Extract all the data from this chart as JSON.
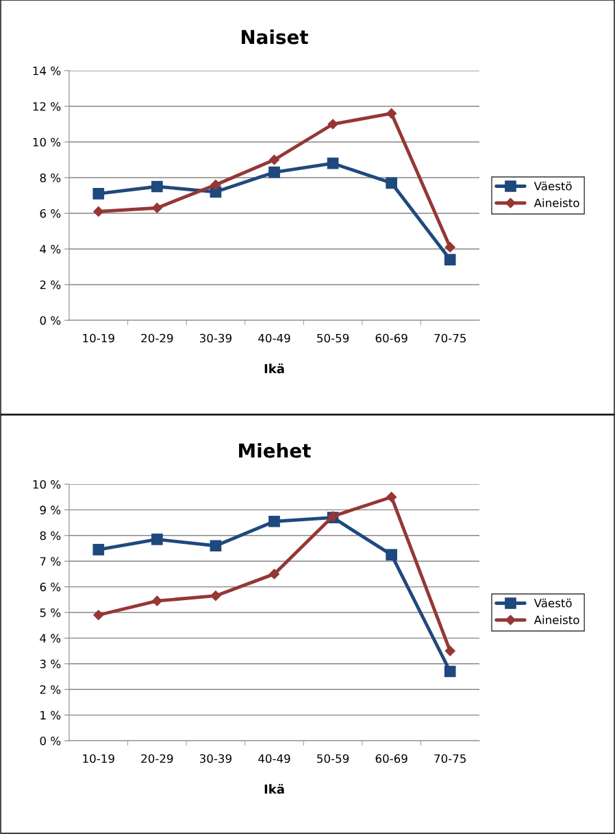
{
  "chart_data": [
    {
      "type": "line",
      "title": "Naiset",
      "xlabel": "Ikä",
      "categories": [
        "10-19",
        "20-29",
        "30-39",
        "40-49",
        "50-59",
        "60-69",
        "70-75"
      ],
      "series": [
        {
          "name": "Väestö",
          "color": "#1f497d",
          "marker": "square",
          "values": [
            7.1,
            7.5,
            7.2,
            8.3,
            8.8,
            7.7,
            3.4
          ]
        },
        {
          "name": "Aineisto",
          "color": "#953735",
          "marker": "diamond",
          "values": [
            6.1,
            6.3,
            7.6,
            9.0,
            11.0,
            11.6,
            4.1
          ]
        }
      ],
      "ylim": [
        0,
        14
      ],
      "yticks": [
        {
          "value": 0,
          "label": "0 %"
        },
        {
          "value": 2,
          "label": "2 %"
        },
        {
          "value": 4,
          "label": "4 %"
        },
        {
          "value": 6,
          "label": "6 %"
        },
        {
          "value": 8,
          "label": "8 %"
        },
        {
          "value": 10,
          "label": "10 %"
        },
        {
          "value": 12,
          "label": "12 %"
        },
        {
          "value": 14,
          "label": "14 %"
        }
      ],
      "grid": "y",
      "legend": "right",
      "line_style": "solid"
    },
    {
      "type": "line",
      "title": "Miehet",
      "xlabel": "Ikä",
      "categories": [
        "10-19",
        "20-29",
        "30-39",
        "40-49",
        "50-59",
        "60-69",
        "70-75"
      ],
      "series": [
        {
          "name": "Väestö",
          "color": "#1f497d",
          "marker": "square",
          "values": [
            7.45,
            7.85,
            7.6,
            8.55,
            8.7,
            7.25,
            2.7
          ]
        },
        {
          "name": "Aineisto",
          "color": "#953735",
          "marker": "diamond",
          "values": [
            4.9,
            5.45,
            5.65,
            6.5,
            8.75,
            9.5,
            3.5
          ]
        }
      ],
      "ylim": [
        0,
        10
      ],
      "yticks": [
        {
          "value": 0,
          "label": "0 %"
        },
        {
          "value": 1,
          "label": "1 %"
        },
        {
          "value": 2,
          "label": "2 %"
        },
        {
          "value": 3,
          "label": "3 %"
        },
        {
          "value": 4,
          "label": "4 %"
        },
        {
          "value": 5,
          "label": "5 %"
        },
        {
          "value": 6,
          "label": "6 %"
        },
        {
          "value": 7,
          "label": "7 %"
        },
        {
          "value": 8,
          "label": "8 %"
        },
        {
          "value": 9,
          "label": "9 %"
        },
        {
          "value": 10,
          "label": "10 %"
        }
      ],
      "grid": "y",
      "legend": "right",
      "line_style": "solid"
    }
  ]
}
